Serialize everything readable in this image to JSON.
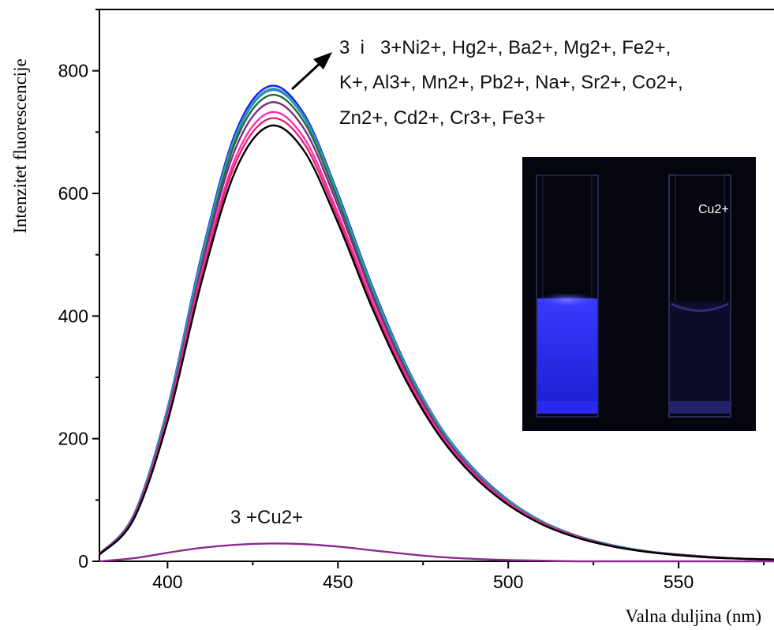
{
  "chart_data": {
    "type": "line",
    "xlabel": "Valna duljina (nm)",
    "ylabel": "Intenzitet fluorescencije",
    "xlim": [
      380,
      578
    ],
    "ylim": [
      0,
      900
    ],
    "xticks": [
      400,
      450,
      500,
      550
    ],
    "yticks": [
      0,
      200,
      400,
      600,
      800
    ],
    "xtick_labels": [
      "400",
      "450",
      "500",
      "550"
    ],
    "ytick_labels": [
      "0",
      "200",
      "400",
      "600",
      "800"
    ],
    "grid": false,
    "series_colors": [
      "#1a1aff",
      "#2b6fd6",
      "#1f6b3a",
      "#2aa0a0",
      "#7a2f80",
      "#ff2db4",
      "#e0246e",
      "#000000",
      "#8b2a8f"
    ],
    "series": [
      {
        "color": "#1a1aff",
        "x": [
          380,
          390,
          400,
          410,
          420,
          430,
          440,
          450,
          460,
          470,
          480,
          490,
          500,
          510,
          520,
          530,
          540,
          550,
          560,
          570,
          578
        ],
        "y": [
          12,
          75,
          250,
          500,
          700,
          775,
          730,
          600,
          450,
          320,
          220,
          150,
          100,
          65,
          42,
          27,
          17,
          11,
          7,
          4,
          3
        ]
      },
      {
        "color": "#2b6fd6",
        "x": [
          380,
          390,
          400,
          410,
          420,
          430,
          440,
          450,
          460,
          470,
          480,
          490,
          500,
          510,
          520,
          530,
          540,
          550,
          560,
          570,
          578
        ],
        "y": [
          12,
          74,
          247,
          494,
          692,
          768,
          724,
          595,
          446,
          317,
          218,
          149,
          99,
          65,
          42,
          27,
          17,
          11,
          7,
          4,
          3
        ]
      },
      {
        "color": "#1f6b3a",
        "x": [
          380,
          390,
          400,
          410,
          420,
          430,
          440,
          450,
          460,
          470,
          480,
          490,
          500,
          510,
          520,
          530,
          540,
          550,
          560,
          570,
          578
        ],
        "y": [
          12,
          73,
          244,
          489,
          685,
          760,
          717,
          589,
          442,
          314,
          216,
          147,
          98,
          64,
          41,
          26,
          17,
          11,
          7,
          4,
          3
        ]
      },
      {
        "color": "#2aa0a0",
        "x": [
          380,
          390,
          400,
          410,
          420,
          430,
          440,
          450,
          460,
          470,
          480,
          490,
          500,
          510,
          520,
          530,
          540,
          550,
          560,
          570,
          578
        ],
        "y": [
          12,
          74,
          248,
          496,
          695,
          770,
          726,
          597,
          447,
          318,
          219,
          149,
          99,
          65,
          42,
          27,
          17,
          11,
          7,
          4,
          3
        ]
      },
      {
        "color": "#7a2f80",
        "x": [
          380,
          390,
          400,
          410,
          420,
          430,
          440,
          450,
          460,
          470,
          480,
          490,
          500,
          510,
          520,
          530,
          540,
          550,
          560,
          570,
          578
        ],
        "y": [
          12,
          72,
          240,
          481,
          674,
          748,
          706,
          580,
          435,
          309,
          213,
          145,
          96,
          63,
          41,
          26,
          16,
          11,
          7,
          4,
          3
        ]
      },
      {
        "color": "#ff2db4",
        "x": [
          380,
          390,
          400,
          410,
          420,
          430,
          440,
          450,
          460,
          470,
          480,
          490,
          500,
          510,
          520,
          530,
          540,
          550,
          560,
          570,
          578
        ],
        "y": [
          11,
          70,
          235,
          470,
          659,
          732,
          691,
          568,
          426,
          303,
          208,
          142,
          95,
          62,
          40,
          25,
          16,
          10,
          6,
          4,
          3
        ]
      },
      {
        "color": "#e0246e",
        "x": [
          380,
          390,
          400,
          410,
          420,
          430,
          440,
          450,
          460,
          470,
          480,
          490,
          500,
          510,
          520,
          530,
          540,
          550,
          560,
          570,
          578
        ],
        "y": [
          11,
          69,
          232,
          464,
          650,
          722,
          682,
          560,
          420,
          299,
          205,
          140,
          93,
          61,
          39,
          25,
          16,
          10,
          6,
          4,
          3
        ]
      },
      {
        "color": "#000000",
        "x": [
          380,
          390,
          400,
          410,
          420,
          430,
          440,
          450,
          460,
          470,
          480,
          490,
          500,
          510,
          520,
          530,
          540,
          550,
          560,
          570,
          578
        ],
        "y": [
          11,
          68,
          228,
          456,
          638,
          710,
          670,
          552,
          414,
          295,
          203,
          138,
          92,
          60,
          39,
          25,
          16,
          10,
          6,
          4,
          3
        ]
      },
      {
        "color": "#8b2a8f",
        "x": [
          380,
          390,
          400,
          410,
          420,
          430,
          440,
          450,
          460,
          470,
          480,
          490,
          500,
          510,
          520,
          530,
          540,
          550,
          560,
          570,
          578
        ],
        "y": [
          0,
          5,
          14,
          22,
          27,
          29,
          28,
          24,
          18,
          12,
          7,
          4,
          2,
          1,
          0,
          0,
          0,
          0,
          0,
          0,
          0
        ]
      }
    ],
    "annotations": {
      "top_line1": "3  i   3+Ni2+, Hg2+, Ba2+, Mg2+, Fe2+,",
      "top_line2": "K+, Al3+, Mn2+, Pb2+, Na+, Sr2+, Co2+,",
      "top_line3": "Zn2+, Cd2+, Cr3+, Fe3+",
      "bottom": "3 +Cu2+",
      "inset_label": "Cu2+"
    }
  }
}
